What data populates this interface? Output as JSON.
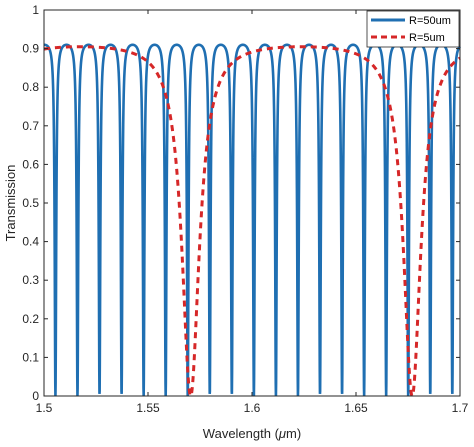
{
  "chart_data": {
    "type": "line",
    "title": "",
    "xlabel": "Wavelength (",
    "xlabel_mu": "μ",
    "xlabel_unit": "m)",
    "ylabel": "Transmission",
    "xlim": [
      1.5,
      1.7
    ],
    "ylim": [
      0,
      1
    ],
    "x_ticks": [
      "1.5",
      "1.55",
      "1.6",
      "1.65",
      "1.7"
    ],
    "x_tick_values": [
      1.5,
      1.55,
      1.6,
      1.65,
      1.7
    ],
    "y_ticks": [
      "0",
      "0.1",
      "0.2",
      "0.3",
      "0.4",
      "0.5",
      "0.6",
      "0.7",
      "0.8",
      "0.9",
      "1"
    ],
    "y_tick_values": [
      0,
      0.1,
      0.2,
      0.3,
      0.4,
      0.5,
      0.6,
      0.7,
      0.8,
      0.9,
      1
    ],
    "grid": false,
    "legend_position": "top-right",
    "series": [
      {
        "name": "R=50um",
        "style": "solid",
        "color": "#1f6fb2",
        "model": "ring-resonator",
        "fsr": 0.0106,
        "max": 0.925,
        "min": 0.0,
        "phase_x": 1.5055
      },
      {
        "name": "R=5um",
        "style": "dashed",
        "color": "#d62728",
        "model": "ring-resonator",
        "fsr": 0.1065,
        "max": 0.925,
        "min": 0.0,
        "phase_x": 1.5705
      }
    ]
  }
}
